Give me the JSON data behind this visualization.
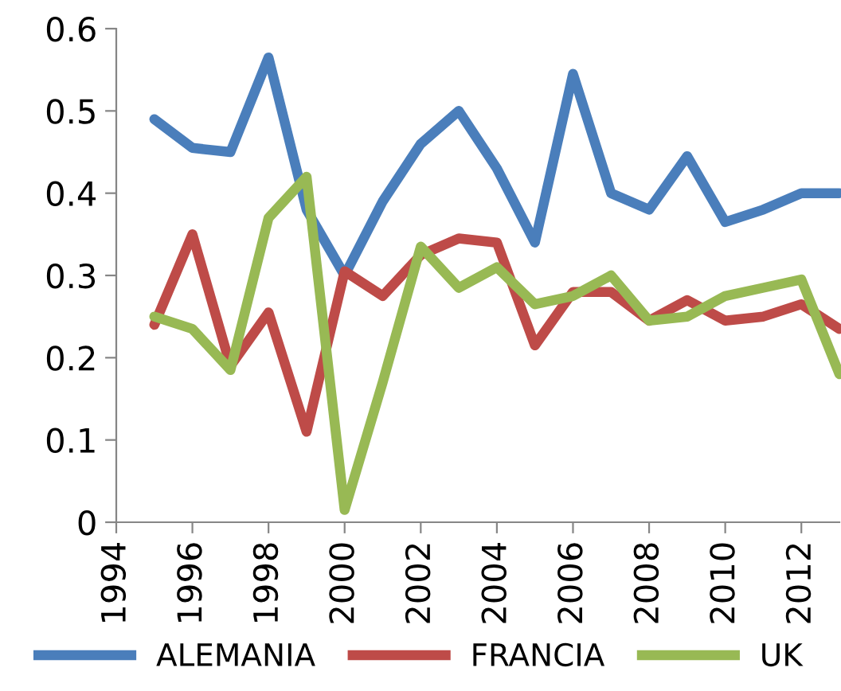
{
  "chart_data": {
    "type": "line",
    "x": [
      1995,
      1996,
      1997,
      1998,
      1999,
      2000,
      2001,
      2002,
      2003,
      2004,
      2005,
      2006,
      2007,
      2008,
      2009,
      2010,
      2011,
      2012,
      2013
    ],
    "series": [
      {
        "name": "ALEMANIA",
        "color": "#4a7ebb",
        "values": [
          0.49,
          0.455,
          0.45,
          0.565,
          0.38,
          0.3,
          0.39,
          0.46,
          0.5,
          0.43,
          0.34,
          0.545,
          0.4,
          0.38,
          0.445,
          0.365,
          0.38,
          0.4,
          0.4
        ]
      },
      {
        "name": "FRANCIA",
        "color": "#be4b48",
        "values": [
          0.24,
          0.35,
          0.19,
          0.255,
          0.11,
          0.305,
          0.275,
          0.325,
          0.345,
          0.34,
          0.215,
          0.28,
          0.28,
          0.245,
          0.27,
          0.245,
          0.25,
          0.265,
          0.235
        ]
      },
      {
        "name": "UK",
        "color": "#98b954",
        "values": [
          0.25,
          0.235,
          0.185,
          0.37,
          0.42,
          0.015,
          0.17,
          0.335,
          0.285,
          0.31,
          0.265,
          0.275,
          0.3,
          0.245,
          0.25,
          0.275,
          0.285,
          0.295,
          0.18
        ]
      }
    ],
    "xlim": [
      1994,
      2013
    ],
    "xticks": [
      1994,
      1996,
      1998,
      2000,
      2002,
      2004,
      2006,
      2008,
      2010,
      2012
    ],
    "ylim": [
      0,
      0.6
    ],
    "yticks": [
      0,
      0.1,
      0.2,
      0.3,
      0.4,
      0.5,
      0.6
    ],
    "grid": false,
    "legend": "bottom",
    "marker": "none",
    "line_style": "solid"
  }
}
